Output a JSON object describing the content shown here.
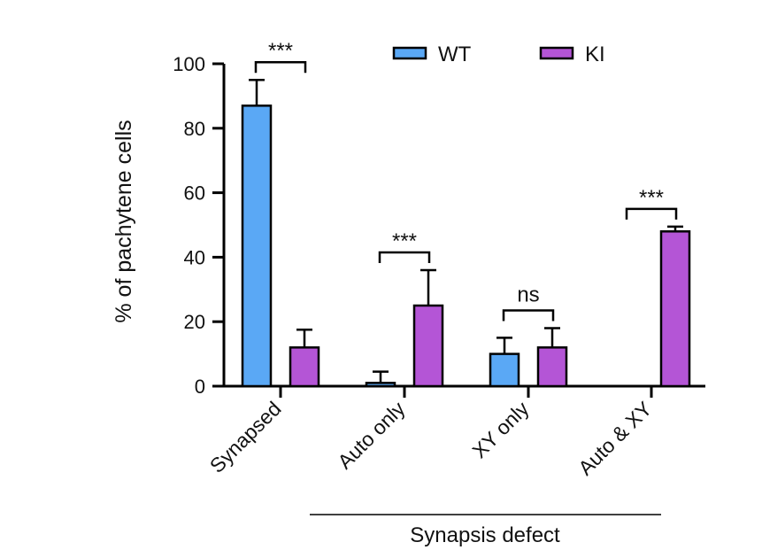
{
  "chart_data": {
    "type": "bar",
    "title": "",
    "xlabel": "",
    "ylabel": "% of pachytene cells",
    "ylim": [
      0,
      100
    ],
    "yticks": [
      0,
      20,
      40,
      60,
      80,
      100
    ],
    "categories": [
      "Synapsed",
      "Auto only",
      "XY only",
      "Auto & XY"
    ],
    "series": [
      {
        "name": "WT",
        "color": "#5aa8f5",
        "values": [
          87,
          1,
          10,
          0
        ],
        "errors": [
          8,
          3.5,
          5,
          0
        ]
      },
      {
        "name": "KI",
        "color": "#b455d6",
        "values": [
          12,
          25,
          12,
          48
        ],
        "errors": [
          5.5,
          11,
          6,
          1.5
        ]
      }
    ],
    "significance": [
      "***",
      "***",
      "ns",
      "***"
    ],
    "group_label": "Synapsis defect",
    "legend": {
      "position": "top-right"
    }
  }
}
